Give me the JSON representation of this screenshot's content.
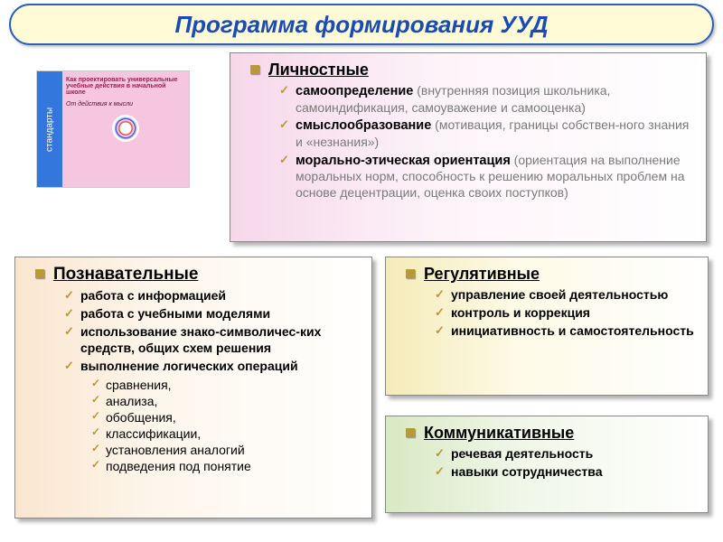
{
  "title": "Программа формирования УУД",
  "book": {
    "spine": "стандарты",
    "coverTitle": "Как проектировать универсальные учебные действия в начальной школе",
    "motto": "От действия к мысли"
  },
  "colors": {
    "titleBg": "#fefbd6",
    "titleBorder": "#2a5fbc",
    "titleText": "#1a4bb5",
    "bullet": "#b99836",
    "personalBg": "#f6d7e9",
    "cognitiveBg": "#fae6cf",
    "regulativeBg": "#f5ebb9",
    "communicativeBg": "#d8e9c3"
  },
  "sections": {
    "personal": {
      "heading": "Личностные",
      "items": [
        {
          "term": "самоопределение",
          "desc": " (внутренняя позиция школьника, самоиндификация, самоуважение и самооценка)"
        },
        {
          "term": "смыслообразование",
          "desc": " (мотивация, границы собствен-ного знания и «незнания»)"
        },
        {
          "term": "морально-этическая ориентация",
          "desc": " (ориентация на выполнение моральных норм, способность к решению моральных проблем на основе децентрации, оценка своих поступков)"
        }
      ]
    },
    "cognitive": {
      "heading": "Познавательные",
      "items": [
        "работа с информацией",
        "работа с учебными моделями",
        "использование знако-символичес-ких средств, общих схем решения",
        "выполнение логических операций"
      ],
      "sub": [
        "сравнения,",
        "анализа,",
        "обобщения,",
        "классификации,",
        "установления аналогий",
        "подведения под понятие"
      ]
    },
    "regulative": {
      "heading": "Регулятивные",
      "items": [
        "управление своей деятельностью",
        "контроль и коррекция",
        "инициативность и самостоятельность"
      ]
    },
    "communicative": {
      "heading": "Коммуникативные",
      "items": [
        "речевая деятельность",
        "навыки сотрудничества"
      ]
    }
  }
}
